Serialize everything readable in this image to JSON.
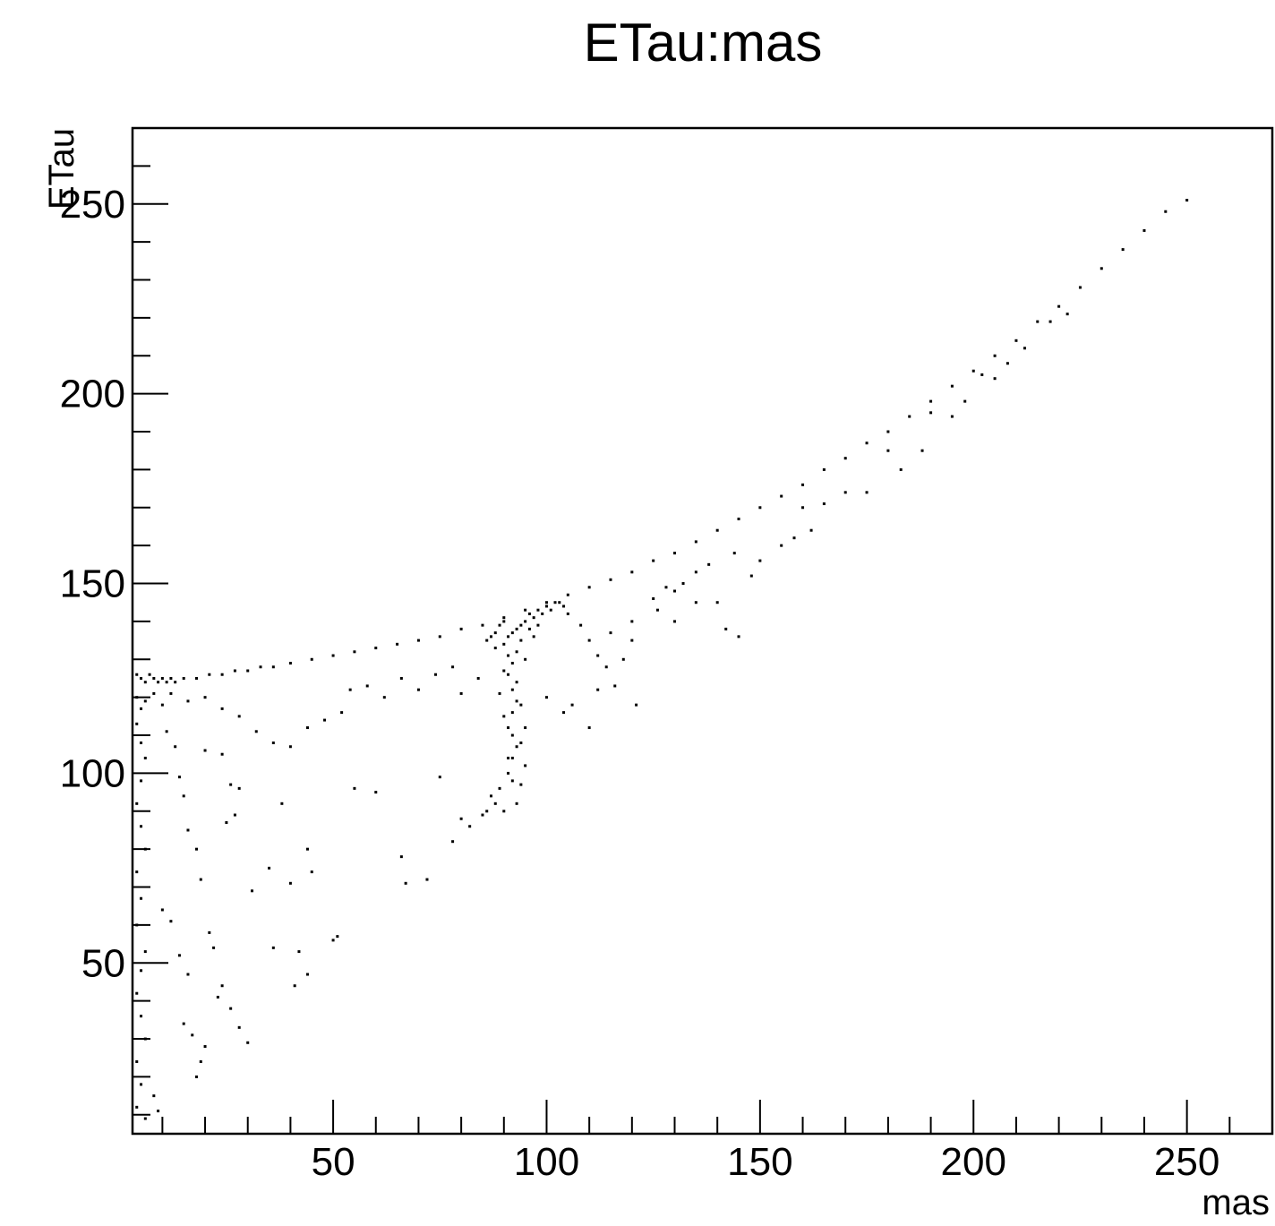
{
  "chart_data": {
    "type": "scatter",
    "title": "ETau:mas",
    "xlabel": "mas",
    "ylabel": "ETau",
    "xlim": [
      3,
      270
    ],
    "ylim": [
      5,
      270
    ],
    "x_ticks": [
      50,
      100,
      150,
      200,
      250
    ],
    "y_ticks": [
      50,
      100,
      150,
      200,
      250
    ],
    "grid": false,
    "legend": "none",
    "marker_color": "#000000",
    "series": [
      {
        "points": [
          [
            4,
            126
          ],
          [
            5,
            125
          ],
          [
            6,
            124
          ],
          [
            7,
            126
          ],
          [
            8,
            125
          ],
          [
            9,
            124
          ],
          [
            10,
            125
          ],
          [
            11,
            124
          ],
          [
            12,
            125
          ],
          [
            13,
            124
          ],
          [
            15,
            125
          ],
          [
            18,
            125
          ],
          [
            21,
            126
          ],
          [
            24,
            126
          ],
          [
            27,
            127
          ],
          [
            30,
            127
          ],
          [
            33,
            128
          ],
          [
            36,
            128
          ],
          [
            40,
            129
          ],
          [
            45,
            130
          ],
          [
            50,
            131
          ],
          [
            55,
            132
          ],
          [
            60,
            133
          ],
          [
            65,
            134
          ],
          [
            70,
            135
          ],
          [
            75,
            136
          ],
          [
            80,
            138
          ],
          [
            85,
            139
          ],
          [
            90,
            141
          ],
          [
            95,
            143
          ],
          [
            100,
            145
          ],
          [
            105,
            147
          ],
          [
            110,
            149
          ],
          [
            115,
            151
          ],
          [
            120,
            153
          ],
          [
            125,
            156
          ],
          [
            130,
            158
          ],
          [
            135,
            161
          ],
          [
            140,
            164
          ],
          [
            145,
            167
          ],
          [
            150,
            170
          ],
          [
            155,
            173
          ],
          [
            160,
            176
          ],
          [
            165,
            180
          ],
          [
            170,
            183
          ],
          [
            175,
            187
          ],
          [
            180,
            190
          ],
          [
            185,
            194
          ],
          [
            190,
            198
          ],
          [
            195,
            202
          ],
          [
            200,
            206
          ],
          [
            205,
            210
          ],
          [
            210,
            214
          ],
          [
            215,
            219
          ],
          [
            220,
            223
          ],
          [
            225,
            228
          ],
          [
            230,
            233
          ],
          [
            235,
            238
          ],
          [
            240,
            243
          ],
          [
            245,
            248
          ],
          [
            250,
            251
          ],
          [
            4,
            120
          ],
          [
            5,
            117
          ],
          [
            4,
            113
          ],
          [
            5,
            108
          ],
          [
            6,
            119
          ],
          [
            6,
            104
          ],
          [
            5,
            98
          ],
          [
            4,
            92
          ],
          [
            5,
            86
          ],
          [
            6,
            80
          ],
          [
            4,
            74
          ],
          [
            5,
            67
          ],
          [
            4,
            60
          ],
          [
            6,
            53
          ],
          [
            5,
            48
          ],
          [
            4,
            42
          ],
          [
            5,
            36
          ],
          [
            6,
            30
          ],
          [
            4,
            24
          ],
          [
            5,
            18
          ],
          [
            4,
            12
          ],
          [
            6,
            9
          ],
          [
            8,
            121
          ],
          [
            10,
            118
          ],
          [
            11,
            111
          ],
          [
            13,
            107
          ],
          [
            14,
            99
          ],
          [
            15,
            94
          ],
          [
            16,
            85
          ],
          [
            18,
            80
          ],
          [
            19,
            72
          ],
          [
            21,
            58
          ],
          [
            22,
            54
          ],
          [
            23,
            41
          ],
          [
            24,
            44
          ],
          [
            26,
            38
          ],
          [
            28,
            33
          ],
          [
            30,
            29
          ],
          [
            10,
            64
          ],
          [
            12,
            61
          ],
          [
            14,
            52
          ],
          [
            16,
            47
          ],
          [
            15,
            34
          ],
          [
            17,
            31
          ],
          [
            19,
            24
          ],
          [
            20,
            28
          ],
          [
            18,
            20
          ],
          [
            9,
            11
          ],
          [
            8,
            15
          ],
          [
            12,
            121
          ],
          [
            16,
            119
          ],
          [
            20,
            120
          ],
          [
            24,
            117
          ],
          [
            28,
            115
          ],
          [
            32,
            111
          ],
          [
            36,
            108
          ],
          [
            40,
            107
          ],
          [
            44,
            112
          ],
          [
            48,
            114
          ],
          [
            52,
            116
          ],
          [
            26,
            97
          ],
          [
            28,
            96
          ],
          [
            38,
            92
          ],
          [
            44,
            80
          ],
          [
            45,
            74
          ],
          [
            40,
            71
          ],
          [
            35,
            75
          ],
          [
            31,
            69
          ],
          [
            50,
            56
          ],
          [
            51,
            57
          ],
          [
            42,
            53
          ],
          [
            44,
            47
          ],
          [
            41,
            44
          ],
          [
            25,
            87
          ],
          [
            27,
            89
          ],
          [
            36,
            54
          ],
          [
            24,
            105
          ],
          [
            20,
            106
          ],
          [
            55,
            96
          ],
          [
            60,
            95
          ],
          [
            66,
            78
          ],
          [
            67,
            71
          ],
          [
            72,
            72
          ],
          [
            75,
            99
          ],
          [
            78,
            82
          ],
          [
            80,
            88
          ],
          [
            82,
            86
          ],
          [
            85,
            89
          ],
          [
            86,
            90
          ],
          [
            87,
            94
          ],
          [
            88,
            92
          ],
          [
            89,
            96
          ],
          [
            90,
            90
          ],
          [
            91,
            100
          ],
          [
            92,
            104
          ],
          [
            93,
            107
          ],
          [
            91,
            112
          ],
          [
            92,
            116
          ],
          [
            93,
            119
          ],
          [
            92,
            122
          ],
          [
            91,
            126
          ],
          [
            92,
            129
          ],
          [
            93,
            132
          ],
          [
            90,
            134
          ],
          [
            91,
            136
          ],
          [
            92,
            137
          ],
          [
            93,
            138
          ],
          [
            94,
            139
          ],
          [
            88,
            137
          ],
          [
            89,
            139
          ],
          [
            90,
            140
          ],
          [
            95,
            140
          ],
          [
            96,
            142
          ],
          [
            94,
            135
          ],
          [
            95,
            130
          ],
          [
            93,
            124
          ],
          [
            94,
            118
          ],
          [
            95,
            112
          ],
          [
            94,
            108
          ],
          [
            95,
            102
          ],
          [
            94,
            97
          ],
          [
            93,
            92
          ],
          [
            92,
            98
          ],
          [
            91,
            104
          ],
          [
            92,
            110
          ],
          [
            90,
            115
          ],
          [
            89,
            121
          ],
          [
            90,
            127
          ],
          [
            91,
            131
          ],
          [
            86,
            135
          ],
          [
            87,
            136
          ],
          [
            88,
            133
          ],
          [
            97,
            141
          ],
          [
            98,
            143
          ],
          [
            99,
            142
          ],
          [
            100,
            144
          ],
          [
            101,
            143
          ],
          [
            102,
            145
          ],
          [
            96,
            138
          ],
          [
            97,
            136
          ],
          [
            98,
            139
          ],
          [
            103,
            145
          ],
          [
            104,
            144
          ],
          [
            105,
            142
          ],
          [
            108,
            139
          ],
          [
            110,
            135
          ],
          [
            112,
            131
          ],
          [
            114,
            128
          ],
          [
            118,
            130
          ],
          [
            121,
            118
          ],
          [
            110,
            112
          ],
          [
            112,
            122
          ],
          [
            115,
            137
          ],
          [
            120,
            140
          ],
          [
            125,
            146
          ],
          [
            128,
            149
          ],
          [
            130,
            140
          ],
          [
            135,
            145
          ],
          [
            140,
            145
          ],
          [
            142,
            138
          ],
          [
            145,
            136
          ],
          [
            150,
            156
          ],
          [
            155,
            160
          ],
          [
            158,
            162
          ],
          [
            162,
            164
          ],
          [
            165,
            171
          ],
          [
            170,
            174
          ],
          [
            175,
            174
          ],
          [
            180,
            185
          ],
          [
            183,
            180
          ],
          [
            188,
            185
          ],
          [
            190,
            195
          ],
          [
            195,
            194
          ],
          [
            198,
            198
          ],
          [
            202,
            205
          ],
          [
            205,
            204
          ],
          [
            208,
            208
          ],
          [
            212,
            212
          ],
          [
            218,
            219
          ],
          [
            222,
            221
          ],
          [
            130,
            148
          ],
          [
            135,
            153
          ],
          [
            62,
            120
          ],
          [
            58,
            123
          ],
          [
            54,
            122
          ],
          [
            66,
            125
          ],
          [
            70,
            122
          ],
          [
            74,
            126
          ],
          [
            78,
            128
          ],
          [
            80,
            121
          ],
          [
            84,
            125
          ],
          [
            100,
            120
          ],
          [
            104,
            116
          ],
          [
            106,
            118
          ],
          [
            116,
            123
          ],
          [
            120,
            135
          ],
          [
            126,
            143
          ],
          [
            132,
            150
          ],
          [
            138,
            155
          ],
          [
            144,
            158
          ],
          [
            148,
            152
          ],
          [
            160,
            170
          ]
        ]
      }
    ]
  }
}
